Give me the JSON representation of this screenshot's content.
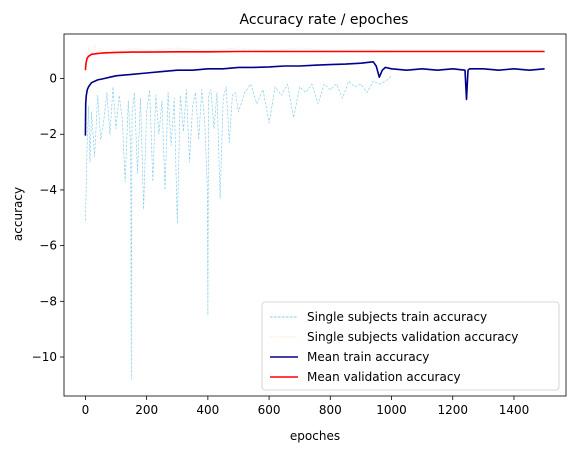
{
  "chart_data": {
    "type": "line",
    "title": "Accuracy rate / epoches",
    "xlabel": "epoches",
    "ylabel": "accuracy",
    "xlim": [
      -70,
      1570
    ],
    "ylim": [
      -11.4,
      1.6
    ],
    "xticks": [
      0,
      200,
      400,
      600,
      800,
      1000,
      1200,
      1400
    ],
    "yticks": [
      0,
      -2,
      -4,
      -6,
      -8,
      -10
    ],
    "grid": false,
    "legend_position": "lower-right",
    "colors": {
      "single_train": "#87ceeb",
      "single_val": "#ffdab9",
      "mean_train": "#00008b",
      "mean_val": "#ff0000"
    },
    "series": [
      {
        "name": "Single subjects train accuracy",
        "style": "dashed",
        "x": [
          0,
          5,
          10,
          15,
          20,
          30,
          40,
          50,
          60,
          70,
          80,
          90,
          100,
          110,
          120,
          130,
          140,
          148,
          150,
          152,
          160,
          170,
          180,
          190,
          200,
          210,
          220,
          230,
          240,
          250,
          260,
          270,
          280,
          290,
          300,
          310,
          320,
          330,
          340,
          350,
          360,
          370,
          380,
          390,
          398,
          400,
          402,
          410,
          420,
          430,
          440,
          450,
          460,
          470,
          480,
          490,
          500,
          520,
          540,
          560,
          580,
          600,
          620,
          640,
          660,
          680,
          700,
          720,
          740,
          760,
          780,
          800,
          820,
          840,
          860,
          880,
          900,
          920,
          940,
          960,
          980,
          1000
        ],
        "values": [
          -5.1,
          -2.6,
          -1.0,
          -3.0,
          -1.2,
          -2.8,
          -0.6,
          -2.2,
          -1.5,
          -0.5,
          -2.0,
          -0.3,
          -1.8,
          -0.6,
          -1.4,
          -3.7,
          -0.8,
          -2.5,
          -10.8,
          -1.3,
          -0.5,
          -3.4,
          -0.7,
          -4.7,
          -1.2,
          -0.4,
          -3.7,
          -0.6,
          -2.0,
          -0.8,
          -4.0,
          -0.5,
          -2.4,
          -0.7,
          -5.2,
          -0.6,
          -1.9,
          -0.4,
          -3.0,
          -1.0,
          -0.5,
          -2.2,
          -0.4,
          -1.6,
          -3.9,
          -8.5,
          -0.6,
          -0.4,
          -1.8,
          -0.5,
          -4.3,
          -0.7,
          -0.3,
          -2.3,
          -0.6,
          -0.5,
          -1.2,
          -0.5,
          -0.2,
          -0.9,
          -0.4,
          -1.6,
          -0.3,
          -0.6,
          -0.2,
          -1.4,
          -0.3,
          -0.5,
          -0.2,
          -0.9,
          -0.2,
          -0.4,
          -0.2,
          -0.7,
          -0.1,
          -0.3,
          -0.2,
          -0.5,
          -0.1,
          -0.2,
          -0.1,
          0.1
        ]
      },
      {
        "name": "Single subjects validation accuracy",
        "style": "dotted",
        "x": [
          0,
          10,
          20,
          30,
          40,
          50,
          60,
          80,
          100,
          150,
          200,
          300,
          400,
          500,
          600,
          700,
          800,
          900,
          1000
        ],
        "values": [
          0.3,
          1.1,
          0.9,
          1.2,
          0.8,
          1.1,
          0.9,
          1.1,
          0.9,
          1.1,
          1.0,
          1.1,
          1.0,
          1.1,
          1.0,
          1.1,
          1.0,
          1.05,
          1.0
        ]
      },
      {
        "name": "Mean train accuracy",
        "style": "solid",
        "x": [
          0,
          1,
          3,
          6,
          10,
          20,
          40,
          60,
          80,
          100,
          150,
          200,
          250,
          300,
          350,
          400,
          450,
          500,
          550,
          600,
          650,
          700,
          750,
          800,
          850,
          900,
          940,
          950,
          960,
          970,
          980,
          1000,
          1050,
          1100,
          1150,
          1200,
          1240,
          1245,
          1250,
          1255,
          1300,
          1350,
          1400,
          1450,
          1500
        ],
        "values": [
          -2.05,
          -0.9,
          -0.6,
          -0.4,
          -0.3,
          -0.15,
          -0.05,
          0.0,
          0.05,
          0.1,
          0.15,
          0.2,
          0.25,
          0.3,
          0.3,
          0.35,
          0.35,
          0.4,
          0.4,
          0.42,
          0.45,
          0.45,
          0.48,
          0.5,
          0.52,
          0.55,
          0.6,
          0.45,
          0.05,
          0.3,
          0.4,
          0.35,
          0.3,
          0.35,
          0.3,
          0.35,
          0.3,
          -0.75,
          0.3,
          0.35,
          0.35,
          0.3,
          0.35,
          0.3,
          0.35
        ]
      },
      {
        "name": "Mean validation accuracy",
        "style": "solid",
        "x": [
          0,
          2,
          5,
          10,
          20,
          40,
          60,
          100,
          150,
          200,
          300,
          400,
          500,
          600,
          700,
          800,
          900,
          1000,
          1100,
          1200,
          1300,
          1400,
          1500
        ],
        "values": [
          0.3,
          0.55,
          0.72,
          0.8,
          0.87,
          0.9,
          0.92,
          0.94,
          0.95,
          0.95,
          0.96,
          0.96,
          0.97,
          0.97,
          0.97,
          0.97,
          0.97,
          0.97,
          0.97,
          0.97,
          0.97,
          0.97,
          0.97
        ]
      }
    ]
  }
}
